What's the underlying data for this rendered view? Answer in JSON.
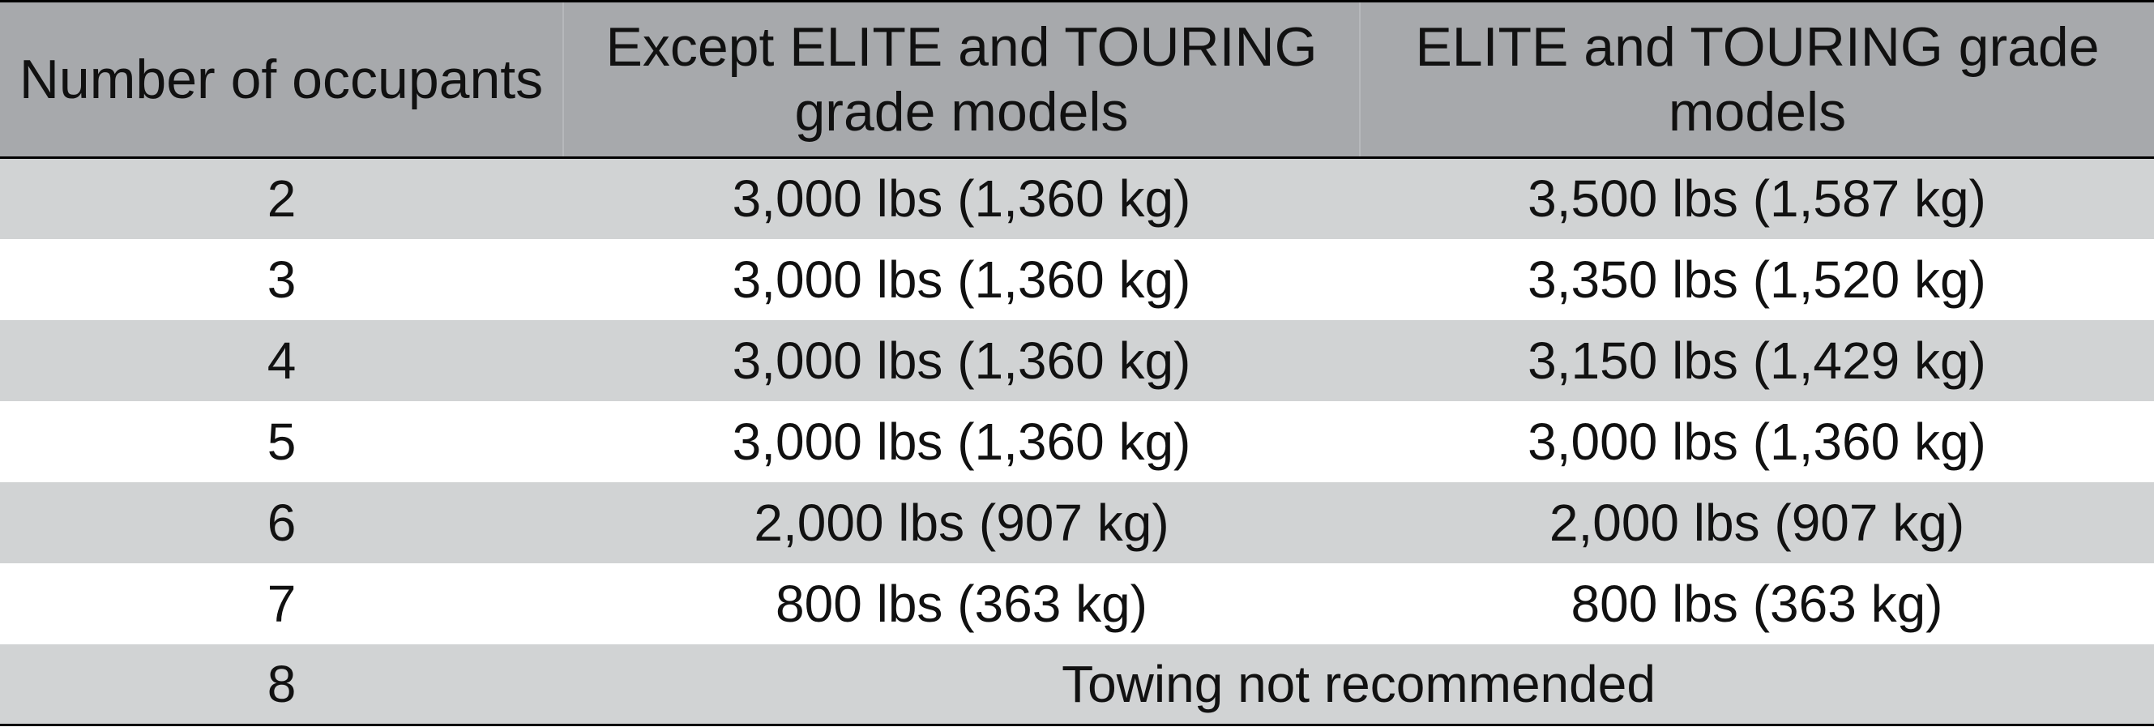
{
  "table": {
    "headers": [
      "Number of occupants",
      "Except ELITE and TOURING grade models",
      "ELITE and TOURING grade models"
    ],
    "rows": [
      [
        "2",
        "3,000 lbs (1,360 kg)",
        "3,500 lbs (1,587 kg)"
      ],
      [
        "3",
        "3,000 lbs (1,360 kg)",
        "3,350 lbs (1,520 kg)"
      ],
      [
        "4",
        "3,000 lbs (1,360 kg)",
        "3,150 lbs (1,429 kg)"
      ],
      [
        "5",
        "3,000 lbs (1,360 kg)",
        "3,000 lbs (1,360 kg)"
      ],
      [
        "6",
        "2,000 lbs (907 kg)",
        "2,000 lbs (907 kg)"
      ],
      [
        "7",
        "800 lbs (363 kg)",
        "800 lbs (363 kg)"
      ],
      [
        "8",
        "Towing not recommended"
      ]
    ]
  }
}
